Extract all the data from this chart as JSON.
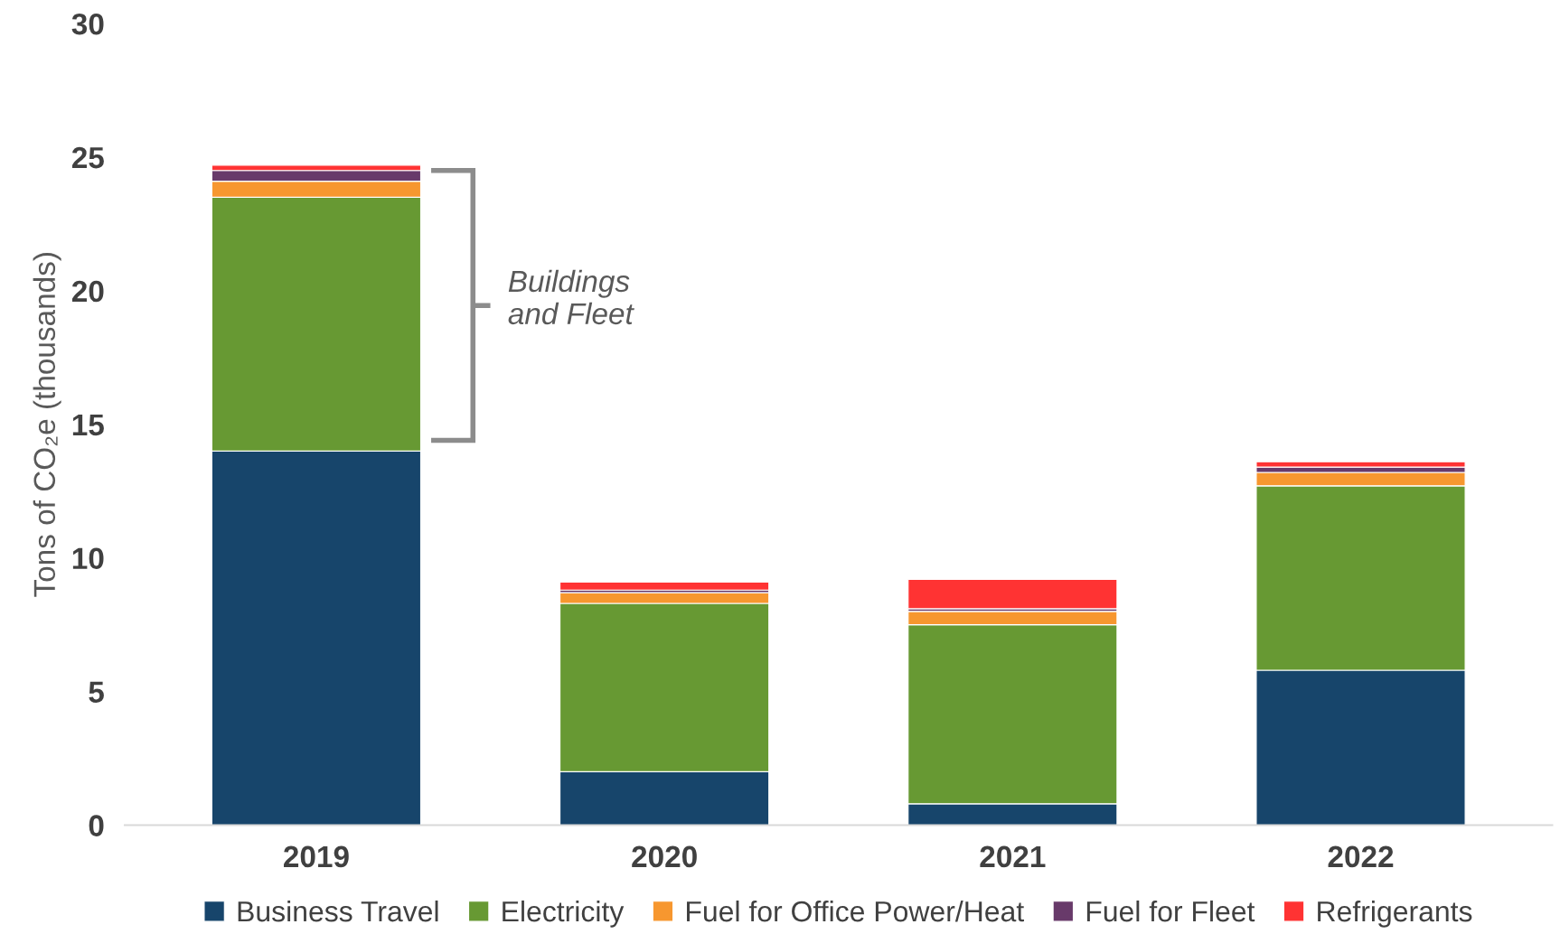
{
  "chart_data": {
    "type": "bar",
    "stacked": true,
    "ylabel": "Tons of CO₂e (thousands)",
    "categories": [
      "2019",
      "2020",
      "2021",
      "2022"
    ],
    "series": [
      {
        "name": "Business Travel",
        "color": "#17456b",
        "values": [
          14.0,
          2.0,
          0.8,
          5.8
        ]
      },
      {
        "name": "Electricity",
        "color": "#679933",
        "values": [
          9.5,
          6.3,
          6.7,
          6.9
        ]
      },
      {
        "name": "Fuel for Office Power/Heat",
        "color": "#f7972f",
        "values": [
          0.6,
          0.4,
          0.5,
          0.5
        ]
      },
      {
        "name": "Fuel for Fleet",
        "color": "#683a6a",
        "values": [
          0.4,
          0.1,
          0.1,
          0.2
        ]
      },
      {
        "name": "Refrigerants",
        "color": "#ff3333",
        "values": [
          0.2,
          0.3,
          1.1,
          0.2
        ]
      }
    ],
    "ylim": [
      0,
      30
    ],
    "yticks": [
      0,
      5,
      10,
      15,
      20,
      25,
      30
    ],
    "grid": false,
    "legend": "bottom",
    "annotations": [
      "Buildings\nand Fleet"
    ]
  }
}
